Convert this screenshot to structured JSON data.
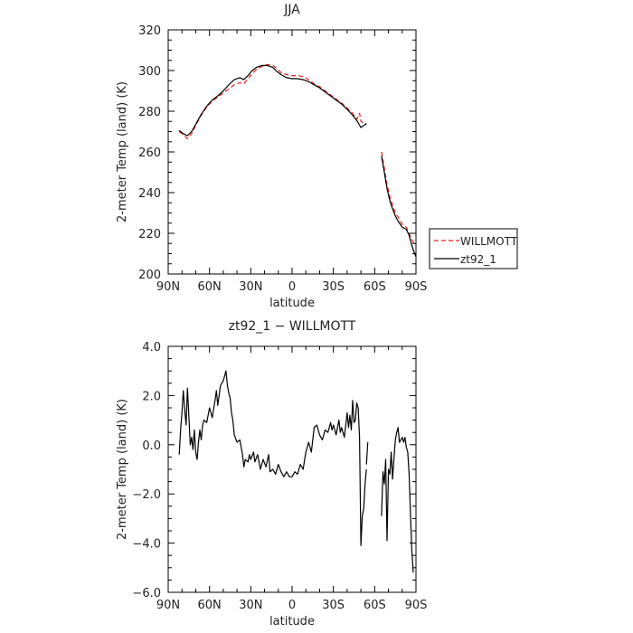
{
  "chart_data": [
    {
      "type": "line",
      "title": "JJA",
      "xlabel": "latitude",
      "ylabel": "2-meter Temp (land) (K)",
      "xlim": [
        90,
        -90
      ],
      "ylim": [
        200,
        320
      ],
      "xticks": [
        90,
        60,
        30,
        0,
        -30,
        -60,
        -90
      ],
      "xtick_labels": [
        "90N",
        "60N",
        "30N",
        "0",
        "30S",
        "60S",
        "90S"
      ],
      "yticks": [
        200,
        220,
        240,
        260,
        280,
        300,
        320
      ],
      "ytick_labels": [
        "200",
        "220",
        "240",
        "260",
        "280",
        "300",
        "320"
      ],
      "legend_position": "right-middle",
      "series": [
        {
          "name": "WILLMOTT",
          "color": "#e8211a",
          "dash": "dashed",
          "segments": [
            [
              [
                82,
                270
              ],
              [
                79,
                268.5
              ],
              [
                76,
                266.5
              ],
              [
                73,
                269
              ],
              [
                70,
                273
              ],
              [
                66,
                278
              ],
              [
                62,
                282
              ],
              [
                58,
                285
              ],
              [
                54,
                287
              ],
              [
                50,
                289
              ],
              [
                46,
                291
              ],
              [
                42,
                293
              ],
              [
                38,
                294
              ],
              [
                35,
                293.5
              ],
              [
                32,
                296
              ],
              [
                29,
                298.5
              ],
              [
                26,
                300.5
              ],
              [
                22,
                302
              ],
              [
                18,
                303
              ],
              [
                14,
                302.5
              ],
              [
                11,
                301
              ],
              [
                8,
                299
              ],
              [
                4,
                298
              ],
              [
                0,
                297.5
              ],
              [
                -4,
                297.5
              ],
              [
                -8,
                297
              ],
              [
                -12,
                295.5
              ],
              [
                -16,
                293.5
              ],
              [
                -20,
                292
              ],
              [
                -24,
                290
              ],
              [
                -28,
                288
              ],
              [
                -32,
                286
              ],
              [
                -36,
                284
              ],
              [
                -40,
                281.5
              ],
              [
                -44,
                279
              ],
              [
                -47,
                276
              ],
              [
                -49,
                279
              ],
              [
                -50,
                275
              ],
              [
                -52,
                274
              ],
              [
                -54,
                273.5
              ]
            ],
            [
              [
                -65,
                260
              ],
              [
                -67,
                252
              ],
              [
                -69,
                244
              ],
              [
                -71,
                238
              ],
              [
                -73,
                234
              ],
              [
                -75,
                230
              ],
              [
                -77,
                228
              ],
              [
                -80,
                224.5
              ],
              [
                -83,
                223
              ],
              [
                -85,
                220
              ],
              [
                -87,
                217
              ],
              [
                -89,
                214.5
              ]
            ]
          ]
        },
        {
          "name": "zt92_1",
          "color": "#000000",
          "dash": "solid",
          "segments": [
            [
              [
                82,
                270.5
              ],
              [
                79,
                269
              ],
              [
                76,
                268
              ],
              [
                73,
                270
              ],
              [
                70,
                273.5
              ],
              [
                66,
                278.5
              ],
              [
                62,
                282.5
              ],
              [
                58,
                285.5
              ],
              [
                54,
                287.5
              ],
              [
                50,
                290
              ],
              [
                46,
                293
              ],
              [
                42,
                295.5
              ],
              [
                38,
                296.5
              ],
              [
                35,
                295.5
              ],
              [
                32,
                297.5
              ],
              [
                29,
                300
              ],
              [
                26,
                301.5
              ],
              [
                22,
                302.5
              ],
              [
                18,
                302.5
              ],
              [
                14,
                301.5
              ],
              [
                11,
                299.5
              ],
              [
                8,
                298
              ],
              [
                4,
                296.5
              ],
              [
                0,
                296
              ],
              [
                -4,
                296
              ],
              [
                -8,
                295.5
              ],
              [
                -12,
                294.5
              ],
              [
                -16,
                293
              ],
              [
                -20,
                291.5
              ],
              [
                -24,
                289.5
              ],
              [
                -28,
                287.5
              ],
              [
                -32,
                285.5
              ],
              [
                -36,
                283.5
              ],
              [
                -40,
                281
              ],
              [
                -44,
                278
              ],
              [
                -47,
                275.5
              ],
              [
                -50,
                272
              ],
              [
                -52,
                273
              ],
              [
                -54,
                274
              ]
            ],
            [
              [
                -65,
                258
              ],
              [
                -67,
                250
              ],
              [
                -69,
                242
              ],
              [
                -71,
                236
              ],
              [
                -73,
                232
              ],
              [
                -75,
                228.5
              ],
              [
                -77,
                226
              ],
              [
                -80,
                223
              ],
              [
                -83,
                222
              ],
              [
                -85,
                219
              ],
              [
                -87,
                214
              ],
              [
                -89,
                210
              ],
              [
                -90,
                208.5
              ]
            ]
          ]
        }
      ]
    },
    {
      "type": "line",
      "title": "zt92_1 − WILLMOTT",
      "xlabel": "latitude",
      "ylabel": "2-meter Temp (land) (K)",
      "xlim": [
        90,
        -90
      ],
      "ylim": [
        -6,
        4
      ],
      "xticks": [
        90,
        60,
        30,
        0,
        -30,
        -60,
        -90
      ],
      "xtick_labels": [
        "90N",
        "60N",
        "30N",
        "0",
        "30S",
        "60S",
        "90S"
      ],
      "yticks": [
        -6,
        -4,
        -2,
        0,
        2,
        4
      ],
      "ytick_labels": [
        "−6.0",
        "−4.0",
        "−2.0",
        "0.0",
        "2.0",
        "4.0"
      ],
      "series": [
        {
          "name": "",
          "color": "#000000",
          "dash": "solid",
          "segments": [
            [
              [
                82,
                -0.4
              ],
              [
                81,
                0.6
              ],
              [
                80,
                1.3
              ],
              [
                79,
                2.2
              ],
              [
                78,
                1.4
              ],
              [
                77,
                0.8
              ],
              [
                76,
                2.3
              ],
              [
                75,
                1.2
              ],
              [
                74,
                0
              ],
              [
                73,
                0.3
              ],
              [
                72,
                -0.2
              ],
              [
                71,
                0.6
              ],
              [
                70,
                -0.3
              ],
              [
                69,
                -0.6
              ],
              [
                68,
                0.1
              ],
              [
                67,
                0.6
              ],
              [
                66,
                0.2
              ],
              [
                65,
                0.8
              ],
              [
                64,
                1.0
              ],
              [
                62,
                0.9
              ],
              [
                60,
                1.5
              ],
              [
                58,
                1.1
              ],
              [
                56,
                1.8
              ],
              [
                55,
                2.2
              ],
              [
                54,
                1.6
              ],
              [
                52,
                2.4
              ],
              [
                50,
                2.6
              ],
              [
                48,
                3.0
              ],
              [
                47,
                2.4
              ],
              [
                46,
                2.1
              ],
              [
                45,
                1.9
              ],
              [
                44,
                1.3
              ],
              [
                43,
                1.0
              ],
              [
                42,
                0.4
              ],
              [
                40,
                0.1
              ],
              [
                38,
                0.2
              ],
              [
                36,
                -0.4
              ],
              [
                35,
                -0.9
              ],
              [
                34,
                -0.6
              ],
              [
                32,
                -0.7
              ],
              [
                31,
                -0.4
              ],
              [
                30,
                -0.6
              ],
              [
                28,
                -0.3
              ],
              [
                27,
                -0.7
              ],
              [
                25,
                -0.4
              ],
              [
                23,
                -1.0
              ],
              [
                21,
                -0.6
              ],
              [
                19,
                -0.9
              ],
              [
                17,
                -0.4
              ],
              [
                16,
                -1.1
              ],
              [
                14,
                -1.0
              ],
              [
                12,
                -1.2
              ],
              [
                10,
                -0.8
              ],
              [
                8,
                -1.1
              ],
              [
                6,
                -1.3
              ],
              [
                4,
                -1.1
              ],
              [
                2,
                -1.3
              ],
              [
                0,
                -1.3
              ],
              [
                -2,
                -1.1
              ],
              [
                -4,
                -1.2
              ],
              [
                -6,
                -0.8
              ],
              [
                -8,
                -1.0
              ],
              [
                -10,
                -0.3
              ],
              [
                -12,
                0.1
              ],
              [
                -14,
                -0.3
              ],
              [
                -16,
                0.7
              ],
              [
                -18,
                0.8
              ],
              [
                -20,
                0.4
              ],
              [
                -22,
                0.2
              ],
              [
                -24,
                0.6
              ],
              [
                -26,
                0.5
              ],
              [
                -28,
                0.9
              ],
              [
                -29,
                0.6
              ],
              [
                -30,
                0.8
              ],
              [
                -32,
                0.4
              ],
              [
                -34,
                1.0
              ],
              [
                -35,
                0.5
              ],
              [
                -36,
                0.7
              ],
              [
                -38,
                0.3
              ],
              [
                -40,
                1.3
              ],
              [
                -41,
                0.7
              ],
              [
                -42,
                1.2
              ],
              [
                -43,
                0.6
              ],
              [
                -44,
                1.8
              ],
              [
                -45,
                0.9
              ],
              [
                -46,
                1.0
              ],
              [
                -47,
                1.7
              ],
              [
                -48,
                1.5
              ],
              [
                -49,
                0.3
              ],
              [
                -50,
                -4.1
              ],
              [
                -51,
                -2.9
              ],
              [
                -52,
                -2.6
              ],
              [
                -53,
                -1.6
              ],
              [
                -54,
                -1.0
              ]
            ],
            [
              [
                -54,
                -0.8
              ],
              [
                -55,
                0.1
              ]
            ],
            [
              [
                -65,
                -2.9
              ],
              [
                -66,
                -1.1
              ],
              [
                -67,
                -1.6
              ],
              [
                -68,
                -0.6
              ],
              [
                -69,
                -3.9
              ],
              [
                -70,
                -1.0
              ],
              [
                -71,
                -1.2
              ],
              [
                -72,
                -0.3
              ],
              [
                -73,
                -1.4
              ],
              [
                -74,
                -0.6
              ],
              [
                -75,
                0.2
              ],
              [
                -76,
                0.5
              ],
              [
                -77,
                0.7
              ],
              [
                -78,
                0.1
              ],
              [
                -79,
                0.2
              ],
              [
                -80,
                0.3
              ],
              [
                -81,
                0.1
              ],
              [
                -82,
                0.3
              ],
              [
                -83,
                -0.1
              ],
              [
                -84,
                -0.3
              ],
              [
                -85,
                -1.2
              ],
              [
                -86,
                -2.8
              ],
              [
                -87,
                -4.3
              ],
              [
                -88,
                -5.2
              ]
            ]
          ]
        }
      ]
    }
  ]
}
